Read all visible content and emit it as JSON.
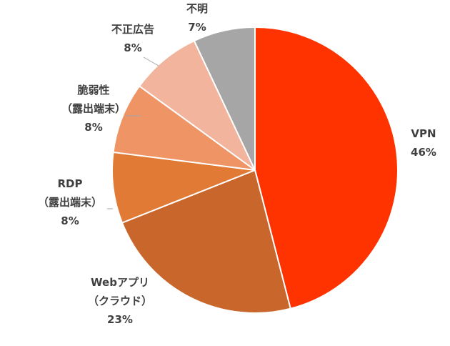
{
  "chart_data": {
    "type": "pie",
    "title": "",
    "start_angle_deg": 0,
    "direction": "clockwise",
    "slices": [
      {
        "name": "VPN",
        "label_lines": [
          "VPN"
        ],
        "value": 46,
        "value_label": "46%",
        "color": "#ff3300"
      },
      {
        "name": "Webアプリ（クラウド）",
        "label_lines": [
          "Webアプリ",
          "（クラウド）"
        ],
        "value": 23,
        "value_label": "23%",
        "color": "#c9662b"
      },
      {
        "name": "RDP（露出端末）",
        "label_lines": [
          "RDP",
          "（露出端末）"
        ],
        "value": 8,
        "value_label": "8%",
        "color": "#e07a34"
      },
      {
        "name": "脆弱性（露出端末）",
        "label_lines": [
          "脆弱性",
          "（露出端末）"
        ],
        "value": 8,
        "value_label": "8%",
        "color": "#ee9465"
      },
      {
        "name": "不正広告",
        "label_lines": [
          "不正広告"
        ],
        "value": 8,
        "value_label": "8%",
        "color": "#f2b49c"
      },
      {
        "name": "不明",
        "label_lines": [
          "不明"
        ],
        "value": 7,
        "value_label": "7%",
        "color": "#a6a6a6"
      }
    ]
  }
}
